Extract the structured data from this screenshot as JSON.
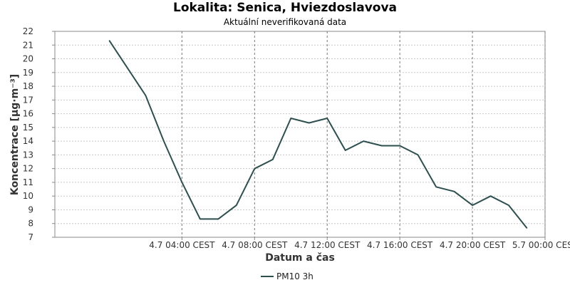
{
  "chart_data": {
    "type": "line",
    "title": "Lokalita: Senica, Hviezdoslavova",
    "subtitle": "Aktuální neverifikovaná data",
    "xlabel": "Datum a čas",
    "ylabel": "Koncentrace [µg·m⁻³]",
    "ylim": [
      7,
      22
    ],
    "yticks": [
      7,
      8,
      9,
      10,
      11,
      12,
      13,
      14,
      15,
      16,
      17,
      18,
      19,
      20,
      21,
      22
    ],
    "xlim_hours": [
      -3,
      24
    ],
    "xticks": [
      {
        "hour": 4,
        "label": "4.7 04:00 CEST"
      },
      {
        "hour": 8,
        "label": "4.7 08:00 CEST"
      },
      {
        "hour": 12,
        "label": "4.7 12:00 CEST"
      },
      {
        "hour": 16,
        "label": "4.7 16:00 CEST"
      },
      {
        "hour": 20,
        "label": "4.7 20:00 CEST"
      },
      {
        "hour": 24,
        "label": "5.7 00:00 CEST"
      }
    ],
    "grid": true,
    "legend_position": "bottom",
    "series": [
      {
        "name": "PM10 3h",
        "color": "#2f4f4f",
        "x_hours": [
          0,
          1,
          2,
          3,
          4,
          5,
          6,
          7,
          8,
          9,
          10,
          11,
          12,
          13,
          14,
          15,
          16,
          17,
          18,
          19,
          20,
          21,
          22,
          23,
          24
        ],
        "values": [
          21.33,
          19.33,
          17.33,
          14.0,
          11.0,
          8.33,
          8.33,
          9.33,
          12.0,
          12.67,
          15.67,
          15.33,
          15.67,
          13.33,
          14.0,
          13.67,
          13.67,
          13.0,
          10.67,
          10.33,
          9.33,
          10.0,
          9.33,
          7.67,
          null
        ]
      }
    ]
  }
}
